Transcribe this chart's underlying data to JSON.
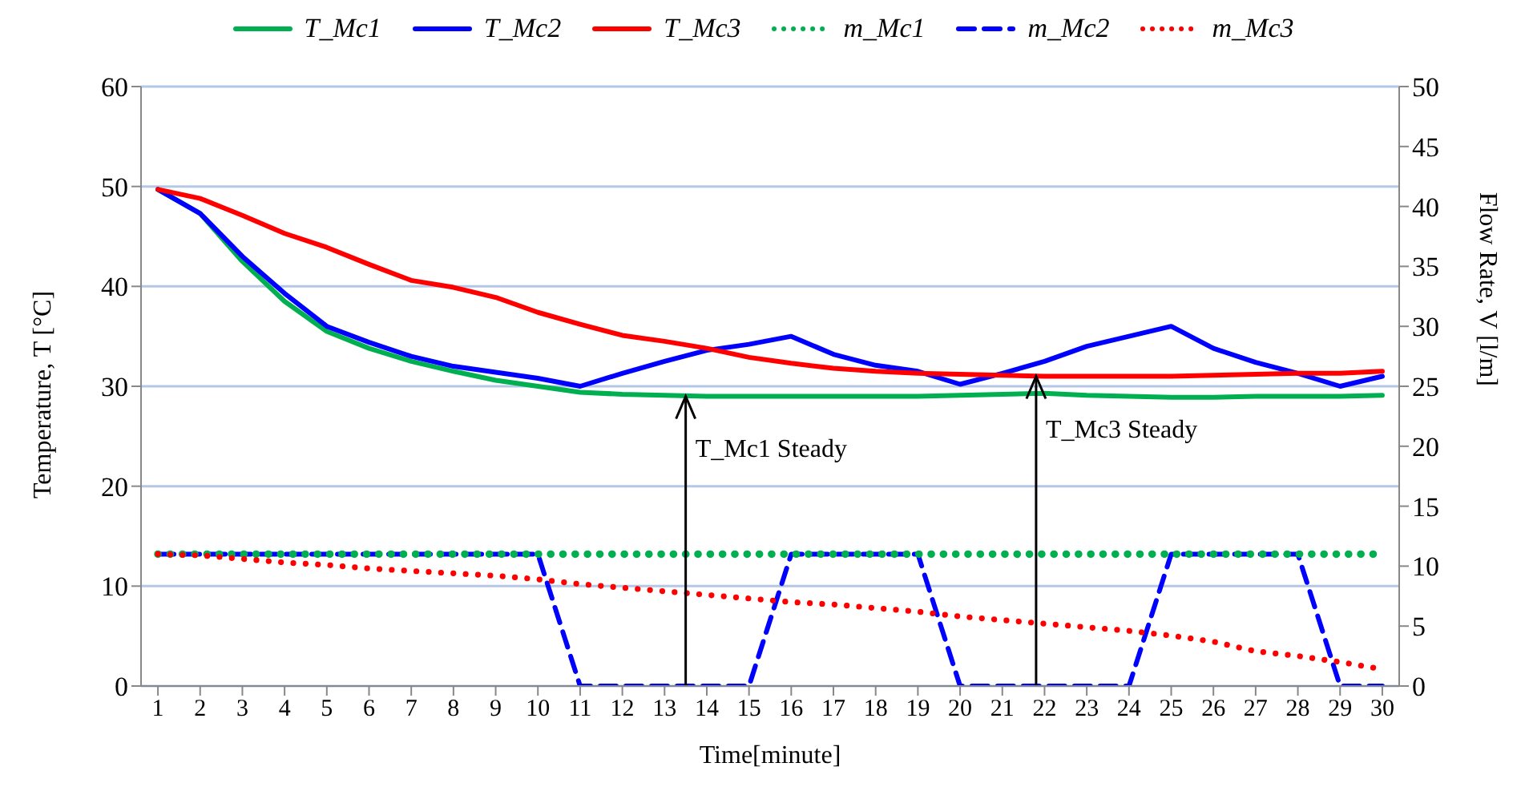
{
  "chart_data": {
    "type": "line",
    "xlabel": "Time[minute]",
    "ylabel": "Temperature, T [°C]",
    "y2label": "Flow Rate, V [l/m]",
    "x": [
      1,
      2,
      3,
      4,
      5,
      6,
      7,
      8,
      9,
      10,
      11,
      12,
      13,
      14,
      15,
      16,
      17,
      18,
      19,
      20,
      21,
      22,
      23,
      24,
      25,
      26,
      27,
      28,
      29,
      30
    ],
    "xlim": [
      0.6,
      30.4
    ],
    "xticks": [
      1,
      2,
      3,
      4,
      5,
      6,
      7,
      8,
      9,
      10,
      11,
      12,
      13,
      14,
      15,
      16,
      17,
      18,
      19,
      20,
      21,
      22,
      23,
      24,
      25,
      26,
      27,
      28,
      29,
      30
    ],
    "ylim": [
      0,
      60
    ],
    "yticks": [
      0,
      10,
      20,
      30,
      40,
      50,
      60
    ],
    "y2lim": [
      0,
      50
    ],
    "y2ticks": [
      0,
      5,
      10,
      15,
      20,
      25,
      30,
      35,
      40,
      45,
      50
    ],
    "grid": "y",
    "legend": "top",
    "marker": "none",
    "series": [
      {
        "name": "T_Mc1",
        "color": "#00b050",
        "line_style": "solid",
        "values": [
          49.7,
          47.3,
          42.5,
          38.5,
          35.5,
          33.8,
          32.5,
          31.5,
          30.6,
          30.0,
          29.4,
          29.2,
          29.1,
          29.0,
          29.0,
          29.0,
          29.0,
          29.0,
          29.0,
          29.1,
          29.2,
          29.3,
          29.1,
          29.0,
          28.9,
          28.9,
          29.0,
          29.0,
          29.0,
          29.1
        ]
      },
      {
        "name": "T_Mc2",
        "color": "#0000ff",
        "line_style": "solid",
        "values": [
          49.7,
          47.3,
          43.0,
          39.3,
          36.0,
          34.4,
          33.0,
          32.0,
          31.4,
          30.8,
          30.0,
          31.3,
          32.5,
          33.6,
          34.2,
          35.0,
          33.2,
          32.1,
          31.5,
          30.2,
          31.3,
          32.5,
          34.0,
          35.0,
          36.0,
          33.8,
          32.4,
          31.3,
          30.0,
          31.0
        ]
      },
      {
        "name": "T_Mc3",
        "color": "#ff0000",
        "line_style": "solid",
        "values": [
          49.7,
          48.8,
          47.1,
          45.3,
          43.9,
          42.2,
          40.6,
          39.9,
          38.9,
          37.4,
          36.2,
          35.1,
          34.5,
          33.8,
          32.9,
          32.3,
          31.8,
          31.5,
          31.3,
          31.2,
          31.1,
          31.0,
          31.0,
          31.0,
          31.0,
          31.1,
          31.2,
          31.3,
          31.3,
          31.5
        ]
      },
      {
        "name": "m_Mc1",
        "color": "#00b050",
        "line_style": "dotted",
        "axis": "y2",
        "values": [
          11,
          11,
          11,
          11,
          11,
          11,
          11,
          11,
          11,
          11,
          11,
          11,
          11,
          11,
          11,
          11,
          11,
          11,
          11,
          11,
          11,
          11,
          11,
          11,
          11,
          11,
          11,
          11,
          11,
          11
        ]
      },
      {
        "name": "m_Mc2",
        "color": "#0000ff",
        "line_style": "dashed",
        "axis": "y2",
        "values": [
          11,
          11,
          11,
          11,
          11,
          11,
          11,
          11,
          11,
          11,
          0,
          0,
          0,
          0,
          0,
          11,
          11,
          11,
          11,
          0,
          0,
          0,
          0,
          0,
          11,
          11,
          11,
          11,
          0,
          0
        ]
      },
      {
        "name": "m_Mc3",
        "color": "#ff0000",
        "line_style": "dotted",
        "axis": "y2",
        "values": [
          11,
          10.9,
          10.6,
          10.3,
          10.1,
          9.8,
          9.6,
          9.4,
          9.2,
          8.9,
          8.5,
          8.2,
          7.9,
          7.6,
          7.3,
          7.0,
          6.8,
          6.5,
          6.2,
          5.8,
          5.5,
          5.2,
          4.9,
          4.6,
          4.2,
          3.7,
          2.9,
          2.5,
          2.0,
          1.4
        ]
      }
    ],
    "annotations": [
      {
        "text": "T_Mc1 Steady",
        "x": 13.5,
        "y": 29
      },
      {
        "text": "T_Mc3 Steady",
        "x": 21.8,
        "y": 31
      }
    ]
  }
}
